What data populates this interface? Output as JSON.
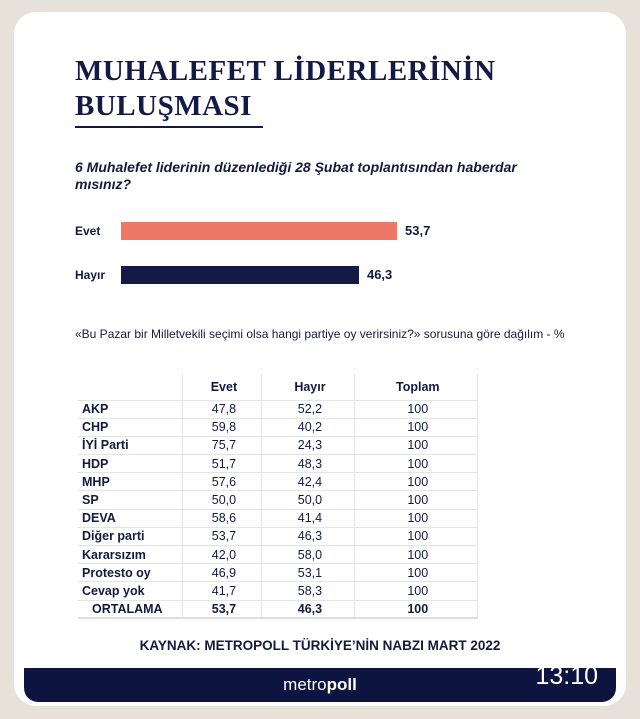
{
  "title_line1": "MUHALEFET LİDERLERİNİN",
  "title_line2": "BULUŞMASI",
  "question1": "6 Muhalefet liderinin düzenlediği 28 Şubat toplantısından haberdar mısınız?",
  "question2": "«Bu Pazar bir Milletvekili seçimi olsa hangi partiye oy verirsiniz?» sorusuna göre dağılım - %",
  "chart_data": [
    {
      "type": "bar",
      "orientation": "horizontal",
      "categories": [
        "Evet",
        "Hayır"
      ],
      "values": [
        53.7,
        46.3
      ],
      "value_labels": [
        "53,7",
        "46,3"
      ],
      "colors": [
        "#ee7866",
        "#121a45"
      ]
    },
    {
      "type": "table",
      "columns": [
        "",
        "Evet",
        "Hayır",
        "Toplam"
      ],
      "rows": [
        [
          "AKP",
          "47,8",
          "52,2",
          "100"
        ],
        [
          "CHP",
          "59,8",
          "40,2",
          "100"
        ],
        [
          "İYİ Parti",
          "75,7",
          "24,3",
          "100"
        ],
        [
          "HDP",
          "51,7",
          "48,3",
          "100"
        ],
        [
          "MHP",
          "57,6",
          "42,4",
          "100"
        ],
        [
          "SP",
          "50,0",
          "50,0",
          "100"
        ],
        [
          "DEVA",
          "58,6",
          "41,4",
          "100"
        ],
        [
          "Diğer parti",
          "53,7",
          "46,3",
          "100"
        ],
        [
          "Kararsızım",
          "42,0",
          "58,0",
          "100"
        ],
        [
          "Protesto oy",
          "46,9",
          "53,1",
          "100"
        ],
        [
          "Cevap yok",
          "41,7",
          "58,3",
          "100"
        ],
        [
          "ORTALAMA",
          "53,7",
          "46,3",
          "100"
        ]
      ]
    }
  ],
  "source": "KAYNAK: METROPOLL TÜRKİYE’NİN NABZI MART 2022",
  "logo": {
    "part1": "metro",
    "part2": "poll"
  },
  "time": "13:10"
}
